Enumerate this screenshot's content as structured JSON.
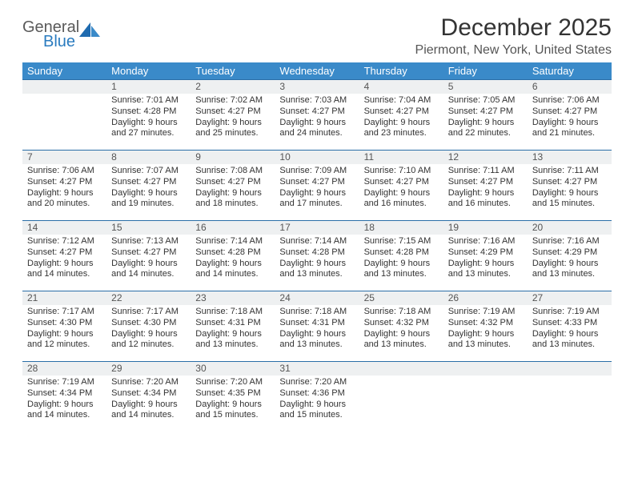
{
  "logo": {
    "line1": "General",
    "line2": "Blue"
  },
  "title": "December 2025",
  "location": "Piermont, New York, United States",
  "header_bg": "#3a8ac9",
  "header_fg": "#ffffff",
  "daynum_bg": "#eef0f1",
  "daynum_border": "#2b6fa8",
  "text_color": "#333333",
  "page_bg": "#ffffff",
  "font_family": "Arial, Helvetica, sans-serif",
  "days_of_week": [
    "Sunday",
    "Monday",
    "Tuesday",
    "Wednesday",
    "Thursday",
    "Friday",
    "Saturday"
  ],
  "weeks": [
    [
      null,
      {
        "n": "1",
        "sunrise": "Sunrise: 7:01 AM",
        "sunset": "Sunset: 4:28 PM",
        "daylight": "Daylight: 9 hours and 27 minutes."
      },
      {
        "n": "2",
        "sunrise": "Sunrise: 7:02 AM",
        "sunset": "Sunset: 4:27 PM",
        "daylight": "Daylight: 9 hours and 25 minutes."
      },
      {
        "n": "3",
        "sunrise": "Sunrise: 7:03 AM",
        "sunset": "Sunset: 4:27 PM",
        "daylight": "Daylight: 9 hours and 24 minutes."
      },
      {
        "n": "4",
        "sunrise": "Sunrise: 7:04 AM",
        "sunset": "Sunset: 4:27 PM",
        "daylight": "Daylight: 9 hours and 23 minutes."
      },
      {
        "n": "5",
        "sunrise": "Sunrise: 7:05 AM",
        "sunset": "Sunset: 4:27 PM",
        "daylight": "Daylight: 9 hours and 22 minutes."
      },
      {
        "n": "6",
        "sunrise": "Sunrise: 7:06 AM",
        "sunset": "Sunset: 4:27 PM",
        "daylight": "Daylight: 9 hours and 21 minutes."
      }
    ],
    [
      {
        "n": "7",
        "sunrise": "Sunrise: 7:06 AM",
        "sunset": "Sunset: 4:27 PM",
        "daylight": "Daylight: 9 hours and 20 minutes."
      },
      {
        "n": "8",
        "sunrise": "Sunrise: 7:07 AM",
        "sunset": "Sunset: 4:27 PM",
        "daylight": "Daylight: 9 hours and 19 minutes."
      },
      {
        "n": "9",
        "sunrise": "Sunrise: 7:08 AM",
        "sunset": "Sunset: 4:27 PM",
        "daylight": "Daylight: 9 hours and 18 minutes."
      },
      {
        "n": "10",
        "sunrise": "Sunrise: 7:09 AM",
        "sunset": "Sunset: 4:27 PM",
        "daylight": "Daylight: 9 hours and 17 minutes."
      },
      {
        "n": "11",
        "sunrise": "Sunrise: 7:10 AM",
        "sunset": "Sunset: 4:27 PM",
        "daylight": "Daylight: 9 hours and 16 minutes."
      },
      {
        "n": "12",
        "sunrise": "Sunrise: 7:11 AM",
        "sunset": "Sunset: 4:27 PM",
        "daylight": "Daylight: 9 hours and 16 minutes."
      },
      {
        "n": "13",
        "sunrise": "Sunrise: 7:11 AM",
        "sunset": "Sunset: 4:27 PM",
        "daylight": "Daylight: 9 hours and 15 minutes."
      }
    ],
    [
      {
        "n": "14",
        "sunrise": "Sunrise: 7:12 AM",
        "sunset": "Sunset: 4:27 PM",
        "daylight": "Daylight: 9 hours and 14 minutes."
      },
      {
        "n": "15",
        "sunrise": "Sunrise: 7:13 AM",
        "sunset": "Sunset: 4:27 PM",
        "daylight": "Daylight: 9 hours and 14 minutes."
      },
      {
        "n": "16",
        "sunrise": "Sunrise: 7:14 AM",
        "sunset": "Sunset: 4:28 PM",
        "daylight": "Daylight: 9 hours and 14 minutes."
      },
      {
        "n": "17",
        "sunrise": "Sunrise: 7:14 AM",
        "sunset": "Sunset: 4:28 PM",
        "daylight": "Daylight: 9 hours and 13 minutes."
      },
      {
        "n": "18",
        "sunrise": "Sunrise: 7:15 AM",
        "sunset": "Sunset: 4:28 PM",
        "daylight": "Daylight: 9 hours and 13 minutes."
      },
      {
        "n": "19",
        "sunrise": "Sunrise: 7:16 AM",
        "sunset": "Sunset: 4:29 PM",
        "daylight": "Daylight: 9 hours and 13 minutes."
      },
      {
        "n": "20",
        "sunrise": "Sunrise: 7:16 AM",
        "sunset": "Sunset: 4:29 PM",
        "daylight": "Daylight: 9 hours and 13 minutes."
      }
    ],
    [
      {
        "n": "21",
        "sunrise": "Sunrise: 7:17 AM",
        "sunset": "Sunset: 4:30 PM",
        "daylight": "Daylight: 9 hours and 12 minutes."
      },
      {
        "n": "22",
        "sunrise": "Sunrise: 7:17 AM",
        "sunset": "Sunset: 4:30 PM",
        "daylight": "Daylight: 9 hours and 12 minutes."
      },
      {
        "n": "23",
        "sunrise": "Sunrise: 7:18 AM",
        "sunset": "Sunset: 4:31 PM",
        "daylight": "Daylight: 9 hours and 13 minutes."
      },
      {
        "n": "24",
        "sunrise": "Sunrise: 7:18 AM",
        "sunset": "Sunset: 4:31 PM",
        "daylight": "Daylight: 9 hours and 13 minutes."
      },
      {
        "n": "25",
        "sunrise": "Sunrise: 7:18 AM",
        "sunset": "Sunset: 4:32 PM",
        "daylight": "Daylight: 9 hours and 13 minutes."
      },
      {
        "n": "26",
        "sunrise": "Sunrise: 7:19 AM",
        "sunset": "Sunset: 4:32 PM",
        "daylight": "Daylight: 9 hours and 13 minutes."
      },
      {
        "n": "27",
        "sunrise": "Sunrise: 7:19 AM",
        "sunset": "Sunset: 4:33 PM",
        "daylight": "Daylight: 9 hours and 13 minutes."
      }
    ],
    [
      {
        "n": "28",
        "sunrise": "Sunrise: 7:19 AM",
        "sunset": "Sunset: 4:34 PM",
        "daylight": "Daylight: 9 hours and 14 minutes."
      },
      {
        "n": "29",
        "sunrise": "Sunrise: 7:20 AM",
        "sunset": "Sunset: 4:34 PM",
        "daylight": "Daylight: 9 hours and 14 minutes."
      },
      {
        "n": "30",
        "sunrise": "Sunrise: 7:20 AM",
        "sunset": "Sunset: 4:35 PM",
        "daylight": "Daylight: 9 hours and 15 minutes."
      },
      {
        "n": "31",
        "sunrise": "Sunrise: 7:20 AM",
        "sunset": "Sunset: 4:36 PM",
        "daylight": "Daylight: 9 hours and 15 minutes."
      },
      null,
      null,
      null
    ]
  ]
}
